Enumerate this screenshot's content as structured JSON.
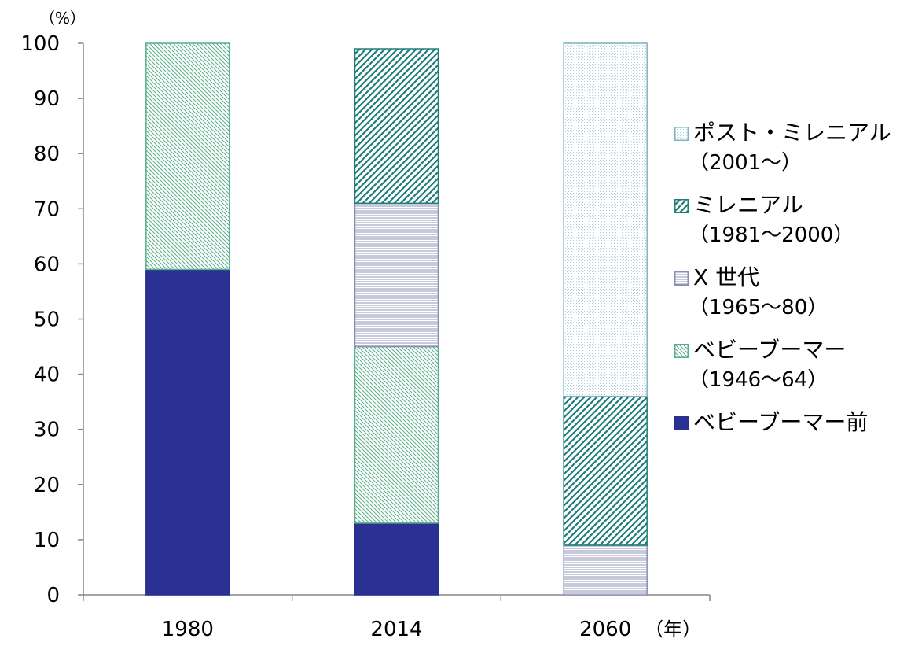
{
  "chart_data": {
    "type": "bar",
    "stacked": true,
    "y_unit_label": "（%）",
    "x_unit_label": "（年）",
    "categories": [
      "1980",
      "2014",
      "2060"
    ],
    "ylim": [
      0,
      100
    ],
    "yticks": [
      0,
      10,
      20,
      30,
      40,
      50,
      60,
      70,
      80,
      90,
      100
    ],
    "grid": false,
    "legend_position": "right",
    "series": [
      {
        "name": "ベビーブーマー前",
        "sub": "",
        "color": "#2a3192",
        "pattern": "solid",
        "values": [
          59,
          13,
          0
        ]
      },
      {
        "name": "ベビーブーマー",
        "sub": "（1946～64）",
        "color": "#5aae8c",
        "pattern": "diag-back",
        "values": [
          41,
          32,
          0
        ]
      },
      {
        "name": "X 世代",
        "sub": "（1965～80）",
        "color": "#8a8fb4",
        "pattern": "horizontal",
        "values": [
          0,
          26,
          9
        ]
      },
      {
        "name": "ミレニアル",
        "sub": "（1981～2000）",
        "color": "#1f7d7a",
        "pattern": "diag-forward",
        "values": [
          0,
          28,
          27
        ]
      },
      {
        "name": "ポスト・ミレニアル",
        "sub": "（2001～）",
        "color": "#7fb1c6",
        "pattern": "dots",
        "values": [
          0,
          0,
          64
        ]
      }
    ]
  }
}
